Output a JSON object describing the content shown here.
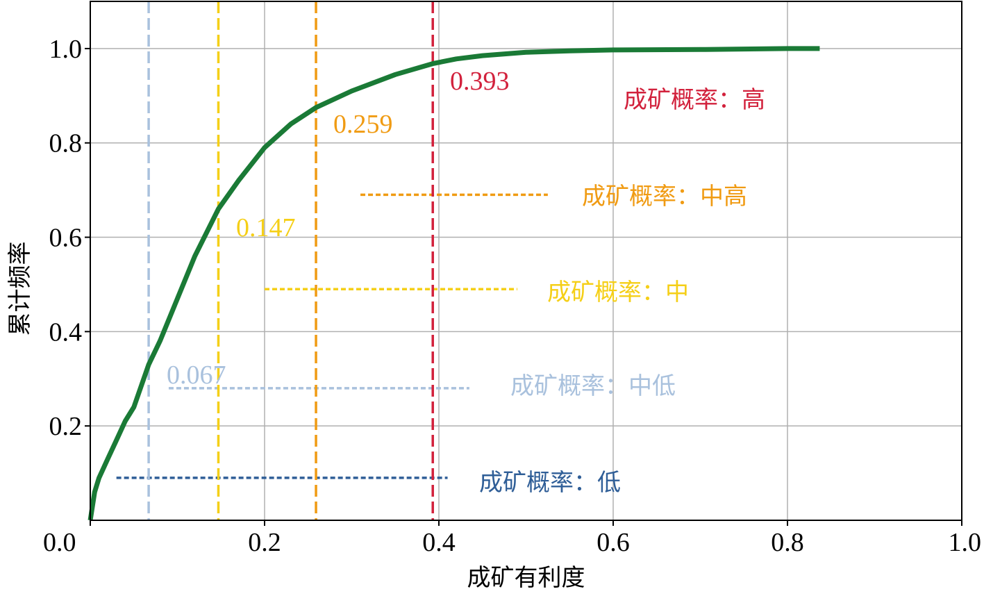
{
  "chart_data": {
    "type": "line",
    "title": "",
    "xlabel": "成矿有利度",
    "ylabel": "累计频率",
    "xlim": [
      0.0,
      1.0
    ],
    "ylim": [
      0.0,
      1.1
    ],
    "x_ticks": [
      "0.0",
      "0.2",
      "0.4",
      "0.6",
      "0.8",
      "1.0"
    ],
    "y_ticks": [
      "0.2",
      "0.4",
      "0.6",
      "0.8",
      "1.0"
    ],
    "x_tick_values": [
      0.0,
      0.2,
      0.4,
      0.6,
      0.8,
      1.0
    ],
    "y_tick_values": [
      0.2,
      0.4,
      0.6,
      0.8,
      1.0
    ],
    "grid": true,
    "curve": {
      "color": "#1a7a36",
      "x": [
        0.0,
        0.005,
        0.01,
        0.02,
        0.03,
        0.04,
        0.05,
        0.067,
        0.08,
        0.1,
        0.12,
        0.147,
        0.17,
        0.2,
        0.23,
        0.259,
        0.3,
        0.35,
        0.393,
        0.42,
        0.45,
        0.5,
        0.55,
        0.6,
        0.7,
        0.8,
        0.837
      ],
      "y": [
        0.0,
        0.06,
        0.09,
        0.13,
        0.17,
        0.21,
        0.24,
        0.33,
        0.38,
        0.47,
        0.56,
        0.66,
        0.72,
        0.79,
        0.84,
        0.875,
        0.91,
        0.945,
        0.968,
        0.978,
        0.985,
        0.992,
        0.995,
        0.997,
        0.998,
        1.0,
        1.0
      ]
    },
    "thresholds": [
      {
        "x": 0.067,
        "label": "0.067",
        "color": "#a9c1dd"
      },
      {
        "x": 0.147,
        "label": "0.147",
        "color": "#f5cf17"
      },
      {
        "x": 0.259,
        "label": "0.259",
        "color": "#f09b13"
      },
      {
        "x": 0.393,
        "label": "0.393",
        "color": "#d2213c"
      }
    ],
    "classes": [
      {
        "label": "成矿概率：低",
        "color": "#2f5e97",
        "x_start": 0.03,
        "x_end": 0.41,
        "y": 0.09
      },
      {
        "label": "成矿概率：中低",
        "color": "#a9c1dd",
        "x_start": 0.09,
        "x_end": 0.435,
        "y": 0.28
      },
      {
        "label": "成矿概率：中",
        "color": "#f5cf17",
        "x_start": 0.2,
        "x_end": 0.49,
        "y": 0.49
      },
      {
        "label": "成矿概率：中高",
        "color": "#f09b13",
        "x_start": 0.31,
        "x_end": 0.525,
        "y": 0.69
      },
      {
        "label": "成矿概率：高",
        "color": "#d2213c"
      }
    ]
  }
}
